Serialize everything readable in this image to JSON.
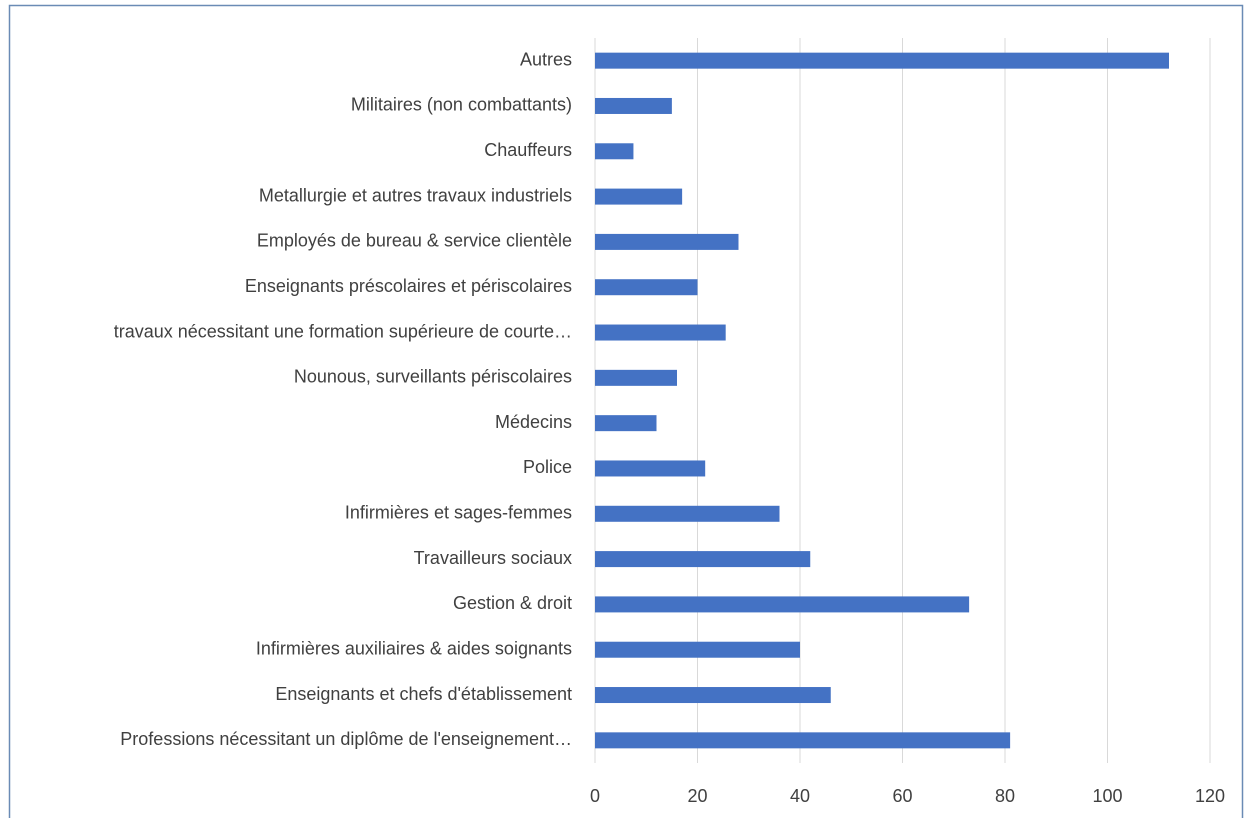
{
  "chart_data": {
    "type": "bar",
    "orientation": "horizontal",
    "categories": [
      "Autres",
      "Militaires (non combattants)",
      "Chauffeurs",
      "Metallurgie et autres travaux industriels",
      "Employés de bureau & service clientèle",
      "Enseignants préscolaires et périscolaires",
      "travaux nécessitant une formation supérieure de courte…",
      "Nounous, surveillants périscolaires",
      "Médecins",
      "Police",
      "Infirmières et sages-femmes",
      "Travailleurs sociaux",
      "Gestion & droit",
      "Infirmières auxiliaires & aides soignants",
      "Enseignants et chefs d'établissement",
      "Professions nécessitant un diplôme de l'enseignement…"
    ],
    "values": [
      112,
      15,
      7.5,
      17,
      28,
      20,
      25.5,
      16,
      12,
      21.5,
      36,
      42,
      73,
      40,
      46,
      81
    ],
    "color": "#4472c4",
    "xlim": [
      0,
      120
    ],
    "xticks": [
      0,
      20,
      40,
      60,
      80,
      100,
      120
    ],
    "grid": true
  }
}
